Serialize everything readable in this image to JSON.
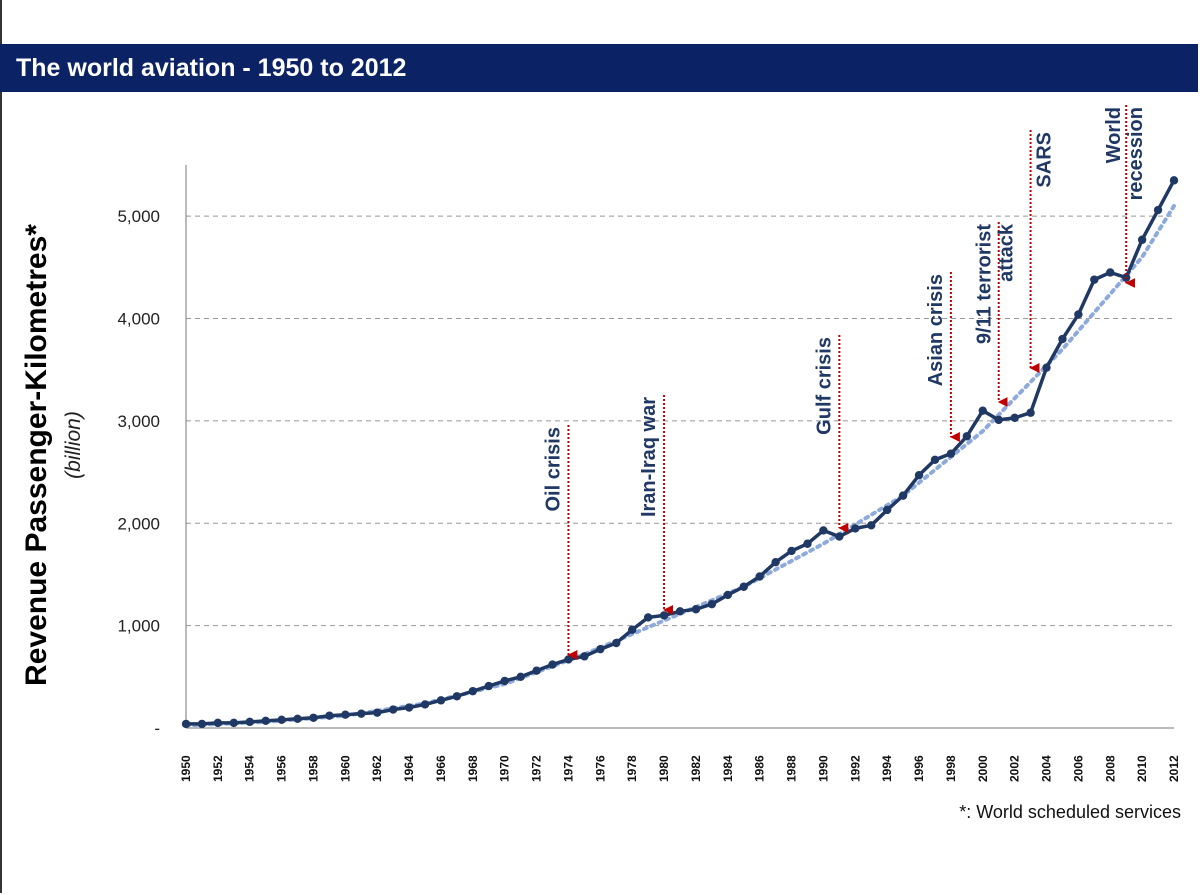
{
  "header": {
    "title": "The world aviation - 1950 to 2012"
  },
  "footnote": "*: World scheduled services",
  "colors": {
    "title_bg": "#0b2265",
    "series": "#1f3864",
    "trend": "#8eaadb",
    "annotation": "#c00000",
    "annotation_text": "#1f3864"
  },
  "chart_data": {
    "type": "line",
    "title": "The world aviation - 1950 to 2012",
    "ylabel": "Revenue Passenger-Kilometres*",
    "ylabel_sub": "(billion)",
    "xlabel": "",
    "ylim": [
      0,
      5500
    ],
    "xlim": [
      1950,
      2012
    ],
    "y_ticks": [
      {
        "value": 0,
        "label": "-"
      },
      {
        "value": 1000,
        "label": "1,000"
      },
      {
        "value": 2000,
        "label": "2,000"
      },
      {
        "value": 3000,
        "label": "3,000"
      },
      {
        "value": 4000,
        "label": "4,000"
      },
      {
        "value": 5000,
        "label": "5,000"
      }
    ],
    "x_ticks": [
      1950,
      1952,
      1954,
      1956,
      1958,
      1960,
      1962,
      1964,
      1966,
      1968,
      1970,
      1972,
      1974,
      1976,
      1978,
      1980,
      1982,
      1984,
      1986,
      1988,
      1990,
      1992,
      1994,
      1996,
      1998,
      2000,
      2002,
      2004,
      2006,
      2008,
      2010,
      2012
    ],
    "grid": "horizontal dashed",
    "series": [
      {
        "style": "solid-markers",
        "x": [
          1950,
          1951,
          1952,
          1953,
          1954,
          1955,
          1956,
          1957,
          1958,
          1959,
          1960,
          1961,
          1962,
          1963,
          1964,
          1965,
          1966,
          1967,
          1968,
          1969,
          1970,
          1971,
          1972,
          1973,
          1974,
          1975,
          1976,
          1977,
          1978,
          1979,
          1980,
          1981,
          1982,
          1983,
          1984,
          1985,
          1986,
          1987,
          1988,
          1989,
          1990,
          1991,
          1992,
          1993,
          1994,
          1995,
          1996,
          1997,
          1998,
          1999,
          2000,
          2001,
          2002,
          2003,
          2004,
          2005,
          2006,
          2007,
          2008,
          2009,
          2010,
          2011,
          2012
        ],
        "y": [
          40,
          40,
          50,
          50,
          60,
          70,
          80,
          90,
          100,
          120,
          130,
          140,
          150,
          180,
          200,
          230,
          270,
          310,
          360,
          410,
          460,
          500,
          560,
          620,
          670,
          700,
          770,
          830,
          960,
          1080,
          1100,
          1140,
          1160,
          1210,
          1300,
          1380,
          1480,
          1620,
          1730,
          1800,
          1930,
          1870,
          1950,
          1980,
          2130,
          2270,
          2470,
          2620,
          2680,
          2850,
          3100,
          3010,
          3030,
          3080,
          3520,
          3800,
          4040,
          4380,
          4450,
          4400,
          4770,
          5060,
          5350
        ]
      },
      {
        "style": "dotted-trend",
        "x": [
          1950,
          1955,
          1960,
          1965,
          1970,
          1975,
          1980,
          1985,
          1990,
          1995,
          2000,
          2005,
          2010,
          2012
        ],
        "y": [
          25,
          60,
          120,
          240,
          430,
          720,
          1050,
          1380,
          1800,
          2270,
          2900,
          3700,
          4600,
          5100
        ]
      }
    ],
    "annotations": [
      {
        "label": "Oil crisis",
        "x": 1974
      },
      {
        "label": "Iran-Iraq war",
        "x": 1980
      },
      {
        "label": "Gulf crisis",
        "x": 1991
      },
      {
        "label": "Asian crisis",
        "x": 1998
      },
      {
        "label": "9/11 terrorist attack",
        "x": 2001
      },
      {
        "label": "SARS",
        "x": 2003
      },
      {
        "label": "World recession",
        "x": 2009
      }
    ]
  }
}
